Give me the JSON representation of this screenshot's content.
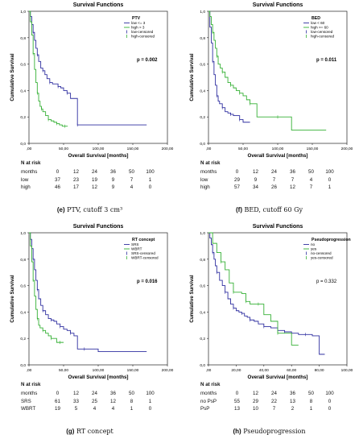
{
  "panels": [
    {
      "caption_letter": "(e)",
      "caption_text": "PTV, cutoff 3 cm³",
      "risk_header": "N at risk",
      "risk_rows": [
        {
          "label": "months",
          "values": [
            "0",
            "12",
            "24",
            "36",
            "50",
            "100"
          ]
        },
        {
          "label": "low",
          "values": [
            "37",
            "23",
            "19",
            "9",
            "7",
            "1"
          ]
        },
        {
          "label": "high",
          "values": [
            "46",
            "17",
            "12",
            "9",
            "4",
            "0"
          ]
        }
      ],
      "chart_data": {
        "type": "line",
        "title": "Survival Functions",
        "xlabel": "Overall Survival [months]",
        "ylabel": "Cumulative Survival",
        "xlim": [
          0,
          200
        ],
        "ylim": [
          0,
          1.0
        ],
        "xticks": [
          ",00",
          "50,00",
          "100,00",
          "150,00",
          "200,00"
        ],
        "yticks": [
          "0,0",
          "0,2",
          "0,4",
          "0,6",
          "0,8",
          "1,0"
        ],
        "legend_title": "PTV",
        "legend": [
          "low <= 3",
          "high > 3",
          "low-censored",
          "high-censored"
        ],
        "annotation": "p = 0.002",
        "series": [
          {
            "name": "low <= 3",
            "color": "#2f2fa0",
            "x": [
              0,
              2,
              4,
              6,
              8,
              10,
              12,
              14,
              17,
              20,
              23,
              26,
              30,
              34,
              38,
              42,
              46,
              50,
              55,
              60,
              65,
              70,
              100,
              170
            ],
            "y": [
              1.0,
              0.96,
              0.9,
              0.84,
              0.78,
              0.72,
              0.67,
              0.62,
              0.57,
              0.55,
              0.52,
              0.49,
              0.46,
              0.45,
              0.45,
              0.43,
              0.42,
              0.4,
              0.38,
              0.34,
              0.34,
              0.14,
              0.14,
              0.14
            ]
          },
          {
            "name": "high > 3",
            "color": "#35b035",
            "x": [
              0,
              2,
              4,
              6,
              8,
              10,
              12,
              14,
              16,
              18,
              20,
              24,
              28,
              32,
              36,
              40,
              44,
              48,
              52,
              56
            ],
            "y": [
              1.0,
              0.92,
              0.82,
              0.68,
              0.56,
              0.46,
              0.38,
              0.32,
              0.28,
              0.26,
              0.24,
              0.21,
              0.18,
              0.17,
              0.16,
              0.15,
              0.14,
              0.13,
              0.13,
              0.13
            ]
          }
        ]
      }
    },
    {
      "caption_letter": "(f)",
      "caption_text": "BED, cutoff 60 Gy",
      "risk_header": "N at risk",
      "risk_rows": [
        {
          "label": "months",
          "values": [
            "0",
            "12",
            "24",
            "36",
            "50",
            "100"
          ]
        },
        {
          "label": "low",
          "values": [
            "29",
            "9",
            "7",
            "7",
            "4",
            "0"
          ]
        },
        {
          "label": "high",
          "values": [
            "57",
            "34",
            "26",
            "12",
            "7",
            "1"
          ]
        }
      ],
      "chart_data": {
        "type": "line",
        "title": "Survival Functions",
        "xlabel": "Overall Survival [months]",
        "ylabel": "Cumulative Survival",
        "xlim": [
          0,
          200
        ],
        "ylim": [
          0,
          1.0
        ],
        "xticks": [
          ",00",
          "50,00",
          "100,00",
          "150,00",
          "200,00"
        ],
        "yticks": [
          "0,0",
          "0,2",
          "0,4",
          "0,6",
          "0,8",
          "1,0"
        ],
        "legend_title": "BED",
        "legend": [
          "low < 60",
          "high >= 60",
          "low-censored",
          "high-censored"
        ],
        "annotation": "p = 0.011",
        "series": [
          {
            "name": "low < 60",
            "color": "#2f2fa0",
            "x": [
              0,
              2,
              4,
              6,
              8,
              10,
              12,
              14,
              16,
              20,
              24,
              28,
              32,
              36,
              40,
              45,
              50,
              55,
              60
            ],
            "y": [
              1.0,
              0.88,
              0.76,
              0.62,
              0.52,
              0.44,
              0.36,
              0.32,
              0.3,
              0.27,
              0.24,
              0.23,
              0.22,
              0.21,
              0.21,
              0.18,
              0.16,
              0.16,
              0.16
            ]
          },
          {
            "name": "high >= 60",
            "color": "#35b035",
            "x": [
              0,
              2,
              4,
              6,
              8,
              10,
              12,
              14,
              17,
              20,
              24,
              28,
              32,
              36,
              40,
              45,
              50,
              55,
              60,
              70,
              80,
              100,
              120,
              170
            ],
            "y": [
              1.0,
              0.96,
              0.9,
              0.84,
              0.78,
              0.72,
              0.66,
              0.6,
              0.57,
              0.54,
              0.5,
              0.46,
              0.44,
              0.42,
              0.4,
              0.38,
              0.36,
              0.33,
              0.3,
              0.2,
              0.2,
              0.2,
              0.1,
              0.1
            ]
          }
        ]
      }
    },
    {
      "caption_letter": "(g)",
      "caption_text": "RT concept",
      "risk_header": "N at risk",
      "risk_rows": [
        {
          "label": "months",
          "values": [
            "0",
            "12",
            "24",
            "36",
            "50",
            "100"
          ]
        },
        {
          "label": "SRS",
          "values": [
            "61",
            "33",
            "25",
            "12",
            "8",
            "1"
          ]
        },
        {
          "label": "WBRT",
          "values": [
            "19",
            "5",
            "4",
            "4",
            "1",
            "0"
          ]
        }
      ],
      "chart_data": {
        "type": "line",
        "title": "Survival Functions",
        "xlabel": "Overall Survival [months]",
        "ylabel": "Cumulative Survival",
        "xlim": [
          0,
          200
        ],
        "ylim": [
          0,
          1.0
        ],
        "xticks": [
          ",00",
          "50,00",
          "100,00",
          "150,00",
          "200,00"
        ],
        "yticks": [
          "0,0",
          "0,2",
          "0,4",
          "0,6",
          "0,8",
          "1,0"
        ],
        "legend_title": "RT concept",
        "legend": [
          "SRS",
          "WBRT",
          "SRS-censored",
          "WBRT-censored"
        ],
        "annotation": "p = 0.016",
        "series": [
          {
            "name": "SRS",
            "color": "#2f2fa0",
            "x": [
              0,
              2,
              4,
              6,
              8,
              10,
              12,
              14,
              17,
              20,
              24,
              28,
              32,
              36,
              40,
              45,
              50,
              55,
              60,
              65,
              70,
              80,
              100,
              170
            ],
            "y": [
              1.0,
              0.95,
              0.88,
              0.8,
              0.72,
              0.64,
              0.57,
              0.5,
              0.45,
              0.41,
              0.38,
              0.35,
              0.34,
              0.33,
              0.31,
              0.29,
              0.27,
              0.26,
              0.24,
              0.22,
              0.12,
              0.12,
              0.1,
              0.1
            ]
          },
          {
            "name": "WBRT",
            "color": "#35b035",
            "x": [
              0,
              2,
              4,
              6,
              8,
              10,
              12,
              14,
              16,
              20,
              24,
              28,
              32,
              36,
              40,
              45,
              50
            ],
            "y": [
              1.0,
              0.9,
              0.78,
              0.64,
              0.52,
              0.42,
              0.35,
              0.3,
              0.28,
              0.26,
              0.24,
              0.22,
              0.2,
              0.2,
              0.17,
              0.17,
              0.17
            ]
          }
        ]
      }
    },
    {
      "caption_letter": "(h)",
      "caption_text": "Pseudoprogression",
      "risk_header": "N at risk",
      "risk_rows": [
        {
          "label": "months",
          "values": [
            "0",
            "12",
            "24",
            "36",
            "50",
            "100"
          ]
        },
        {
          "label": "no PsP",
          "values": [
            "55",
            "29",
            "22",
            "13",
            "8",
            "0"
          ]
        },
        {
          "label": "PsP",
          "values": [
            "13",
            "10",
            "7",
            "2",
            "1",
            "0"
          ]
        }
      ],
      "chart_data": {
        "type": "line",
        "title": "Survival Functions",
        "xlabel": "Overall Survival [months]",
        "ylabel": "Cumulative Survival",
        "xlim": [
          0,
          100
        ],
        "ylim": [
          0,
          1.0
        ],
        "xticks": [
          ",00",
          "20,00",
          "40,00",
          "60,00",
          "80,00",
          "100,00"
        ],
        "yticks": [
          "0,0",
          "0,2",
          "0,4",
          "0,6",
          "0,8",
          "1,0"
        ],
        "legend_title": "Pseudoprogression",
        "legend": [
          "no",
          "yes",
          "no-censored",
          "yes-censored"
        ],
        "annotation": "p = 0.332",
        "series": [
          {
            "name": "no",
            "color": "#2f2fa0",
            "x": [
              0,
              1,
              2,
              3,
              4,
              5,
              6,
              8,
              10,
              12,
              14,
              16,
              18,
              20,
              22,
              24,
              26,
              28,
              30,
              33,
              36,
              40,
              45,
              50,
              55,
              60,
              65,
              70,
              75,
              80,
              84
            ],
            "y": [
              1.0,
              0.96,
              0.91,
              0.85,
              0.8,
              0.75,
              0.7,
              0.64,
              0.6,
              0.55,
              0.5,
              0.46,
              0.43,
              0.41,
              0.4,
              0.39,
              0.37,
              0.36,
              0.34,
              0.33,
              0.31,
              0.29,
              0.28,
              0.26,
              0.25,
              0.24,
              0.23,
              0.23,
              0.22,
              0.08,
              0.08
            ]
          },
          {
            "name": "yes",
            "color": "#35b035",
            "x": [
              0,
              3,
              6,
              9,
              12,
              15,
              18,
              21,
              24,
              27,
              30,
              33,
              36,
              40,
              45,
              50,
              55,
              60,
              65
            ],
            "y": [
              1.0,
              0.92,
              0.85,
              0.78,
              0.72,
              0.62,
              0.55,
              0.55,
              0.54,
              0.48,
              0.46,
              0.46,
              0.46,
              0.38,
              0.33,
              0.24,
              0.24,
              0.15,
              0.15
            ]
          }
        ]
      }
    }
  ]
}
